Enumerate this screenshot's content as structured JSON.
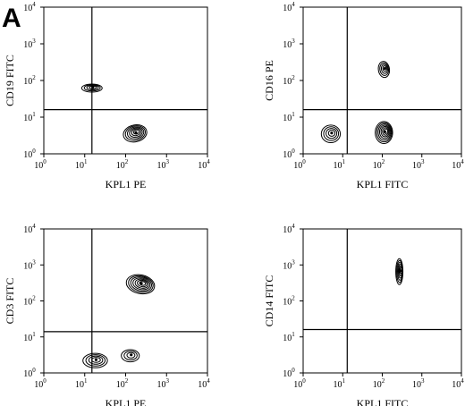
{
  "figure": {
    "panel_letter": "A",
    "tick_base": "10",
    "tick_exponents": [
      "0",
      "1",
      "2",
      "3",
      "4"
    ]
  },
  "chart_data": [
    {
      "type": "contour",
      "title": "",
      "xlabel": "KPL1 PE",
      "ylabel": "CD19 FITC",
      "xscale": "log",
      "yscale": "log",
      "xlim": [
        1,
        10000
      ],
      "ylim": [
        1,
        10000
      ],
      "quadrant_gate": {
        "x": 15,
        "y": 16
      },
      "populations": [
        {
          "x": 15,
          "y": 62,
          "rings": 4,
          "sx": 0.25,
          "sy": 0.11,
          "tilt": 0
        },
        {
          "x": 170,
          "y": 3.6,
          "rings": 6,
          "sx": 0.29,
          "sy": 0.23,
          "tilt": 0.3
        }
      ]
    },
    {
      "type": "contour",
      "title": "",
      "xlabel": "KPL1 FITC",
      "ylabel": "CD16 PE",
      "xscale": "log",
      "yscale": "log",
      "xlim": [
        1,
        10000
      ],
      "ylim": [
        1,
        10000
      ],
      "quadrant_gate": {
        "x": 13,
        "y": 16
      },
      "populations": [
        {
          "x": 110,
          "y": 200,
          "rings": 4,
          "sx": 0.14,
          "sy": 0.22,
          "tilt": 0.2
        },
        {
          "x": 5,
          "y": 3.5,
          "rings": 4,
          "sx": 0.24,
          "sy": 0.24,
          "tilt": 0
        },
        {
          "x": 110,
          "y": 3.8,
          "rings": 7,
          "sx": 0.22,
          "sy": 0.3,
          "tilt": 0
        }
      ]
    },
    {
      "type": "contour",
      "title": "",
      "xlabel": "KPL1 PE",
      "ylabel": "CD3 FITC",
      "xscale": "log",
      "yscale": "log",
      "xlim": [
        1,
        10000
      ],
      "ylim": [
        1,
        10000
      ],
      "quadrant_gate": {
        "x": 15,
        "y": 14
      },
      "populations": [
        {
          "x": 230,
          "y": 290,
          "rings": 7,
          "sx": 0.35,
          "sy": 0.26,
          "tilt": -0.3
        },
        {
          "x": 18,
          "y": 2.2,
          "rings": 4,
          "sx": 0.3,
          "sy": 0.2,
          "tilt": 0
        },
        {
          "x": 130,
          "y": 3.0,
          "rings": 3,
          "sx": 0.22,
          "sy": 0.17,
          "tilt": 0
        }
      ]
    },
    {
      "type": "contour",
      "title": "",
      "xlabel": "KPL1 FITC",
      "ylabel": "CD14 FITC",
      "xscale": "log",
      "yscale": "log",
      "xlim": [
        1,
        10000
      ],
      "ylim": [
        1,
        10000
      ],
      "quadrant_gate": {
        "x": 13,
        "y": 16
      },
      "populations": [
        {
          "x": 270,
          "y": 650,
          "rings": 6,
          "sx": 0.09,
          "sy": 0.36,
          "tilt": 0
        }
      ]
    }
  ]
}
